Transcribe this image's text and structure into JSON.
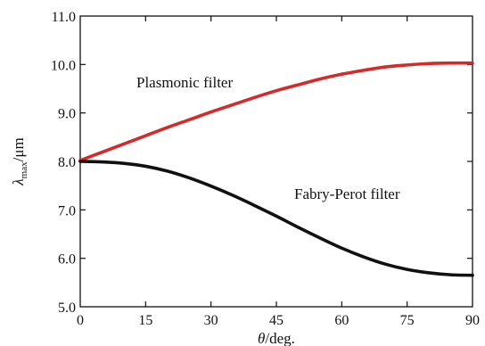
{
  "chart_data": {
    "type": "line",
    "xlabel_symbol": "θ",
    "xlabel_unit": "/deg.",
    "ylabel_symbol": "λ",
    "ylabel_sub": "max",
    "ylabel_unit": "/μm",
    "xlim": [
      0,
      90
    ],
    "ylim": [
      5.0,
      11.0
    ],
    "xticks": [
      0,
      15,
      30,
      45,
      60,
      75,
      90
    ],
    "xtick_labels": [
      "0",
      "15",
      "30",
      "45",
      "60",
      "75",
      "90"
    ],
    "yticks": [
      5.0,
      6.0,
      7.0,
      8.0,
      9.0,
      10.0,
      11.0
    ],
    "ytick_labels": [
      "5.0",
      "6.0",
      "7.0",
      "8.0",
      "9.0",
      "10.0",
      "11.0"
    ],
    "grid": false,
    "series": [
      {
        "name": "Plasmonic filter",
        "color": "#d42a2a",
        "x": [
          0,
          5,
          10,
          15,
          20,
          25,
          30,
          35,
          40,
          45,
          50,
          55,
          60,
          65,
          70,
          75,
          80,
          85,
          90
        ],
        "y": [
          8.02,
          8.19,
          8.36,
          8.53,
          8.7,
          8.86,
          9.02,
          9.17,
          9.32,
          9.46,
          9.58,
          9.7,
          9.8,
          9.88,
          9.95,
          9.99,
          10.02,
          10.03,
          10.03
        ]
      },
      {
        "name": "Fabry-Perot filter",
        "color": "#111111",
        "x": [
          0,
          5,
          10,
          15,
          20,
          25,
          30,
          35,
          40,
          45,
          50,
          55,
          60,
          65,
          70,
          75,
          80,
          85,
          90
        ],
        "y": [
          8.0,
          7.99,
          7.96,
          7.9,
          7.8,
          7.66,
          7.49,
          7.3,
          7.09,
          6.87,
          6.64,
          6.42,
          6.21,
          6.03,
          5.88,
          5.77,
          5.7,
          5.66,
          5.65
        ]
      }
    ]
  }
}
